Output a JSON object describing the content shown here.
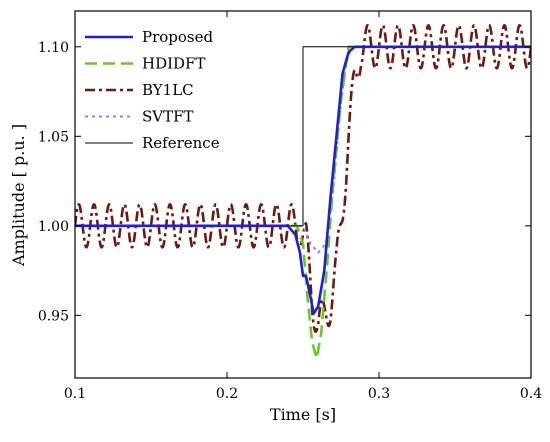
{
  "chart_data": {
    "type": "line",
    "xlabel": "Time [s]",
    "ylabel": "Amplitude [ p.u. ]",
    "xlim": [
      0.1,
      0.4
    ],
    "ylim": [
      0.915,
      1.12
    ],
    "xticks": [
      0.1,
      0.2,
      0.3,
      0.4
    ],
    "xtick_labels": [
      "0.1",
      "0.2",
      "0.3",
      "0.4"
    ],
    "yticks": [
      0.95,
      1.0,
      1.05,
      1.1
    ],
    "ytick_labels": [
      "0.95",
      "1.00",
      "1.05",
      "1.10"
    ],
    "legend_position": "top-left",
    "grid": false,
    "series": [
      {
        "name": "Proposed",
        "color": "#1f1fd6",
        "style": "solid",
        "x": [
          0.1,
          0.24,
          0.245,
          0.248,
          0.25,
          0.252,
          0.255,
          0.257,
          0.26,
          0.264,
          0.268,
          0.272,
          0.276,
          0.28,
          0.284,
          0.29,
          0.3,
          0.4
        ],
        "y": [
          1.0,
          1.0,
          0.995,
          0.985,
          0.972,
          0.972,
          0.96,
          0.951,
          0.955,
          0.975,
          1.015,
          1.05,
          1.085,
          1.097,
          1.1,
          1.1,
          1.1,
          1.1
        ]
      },
      {
        "name": "HDIDFT",
        "color": "#6ac62b",
        "style": "dashed",
        "x": [
          0.1,
          0.246,
          0.25,
          0.253,
          0.256,
          0.259,
          0.262,
          0.266,
          0.27,
          0.275,
          0.28,
          0.285,
          0.29,
          0.4
        ],
        "y": [
          1.0,
          1.0,
          0.99,
          0.96,
          0.935,
          0.926,
          0.94,
          0.98,
          1.025,
          1.07,
          1.1,
          1.1,
          1.1,
          1.1
        ]
      },
      {
        "name": "BY1LC",
        "color": "#6b1a0e",
        "style": "dashdot",
        "x": [
          0.1,
          0.248,
          0.252,
          0.256,
          0.26,
          0.264,
          0.268,
          0.272,
          0.276,
          0.28,
          0.284,
          0.288,
          0.4
        ],
        "y": [
          1.0,
          1.0,
          0.99,
          0.96,
          0.945,
          0.948,
          0.958,
          0.975,
          1.01,
          1.05,
          1.08,
          1.1,
          1.1
        ],
        "oscillation_amplitude": 0.012,
        "oscillation_period": 0.01
      },
      {
        "name": "SVTFT",
        "color": "#9a7ee0",
        "style": "dotted",
        "x": [
          0.1,
          0.25,
          0.255,
          0.26,
          0.265,
          0.27,
          0.274,
          0.278,
          0.282,
          0.286,
          0.4
        ],
        "y": [
          1.0,
          1.0,
          0.99,
          0.985,
          0.99,
          1.02,
          1.06,
          1.09,
          1.1,
          1.1,
          1.1
        ]
      },
      {
        "name": "Reference",
        "color": "#000000",
        "style": "solid-thin",
        "x": [
          0.1,
          0.25,
          0.25,
          0.4
        ],
        "y": [
          1.0,
          1.0,
          1.1,
          1.1
        ]
      }
    ]
  }
}
